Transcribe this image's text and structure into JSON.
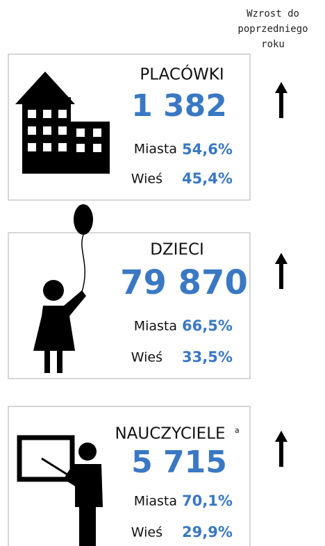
{
  "header": {
    "growth_label": [
      "Wzrost do",
      "poprzedniego",
      "roku"
    ]
  },
  "cards": [
    {
      "title": "PLACÓWKI",
      "value": "1 382",
      "rows": [
        {
          "label": "Miasta",
          "value": "54,6%"
        },
        {
          "label": "Wieś",
          "value": "45,4%"
        }
      ]
    },
    {
      "title": "DZIECI",
      "value": "79 870",
      "rows": [
        {
          "label": "Miasta",
          "value": "66,5%"
        },
        {
          "label": "Wieś",
          "value": "33,5%"
        }
      ]
    },
    {
      "title": "NAUCZYCIELE",
      "note": "a",
      "value": "5 715",
      "rows": [
        {
          "label": "Miasta",
          "value": "70,1%"
        },
        {
          "label": "Wieś",
          "value": "29,9%"
        }
      ]
    }
  ]
}
